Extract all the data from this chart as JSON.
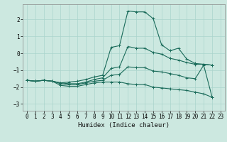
{
  "xlabel": "Humidex (Indice chaleur)",
  "xlim": [
    -0.5,
    23.5
  ],
  "ylim": [
    -3.4,
    2.9
  ],
  "bg_color": "#cce8e0",
  "grid_color": "#aad4cc",
  "line_color": "#1a6b5a",
  "xticks": [
    0,
    1,
    2,
    3,
    4,
    5,
    6,
    7,
    8,
    9,
    10,
    11,
    12,
    13,
    14,
    15,
    16,
    17,
    18,
    19,
    20,
    21,
    22,
    23
  ],
  "yticks": [
    -3,
    -2,
    -1,
    0,
    1,
    2
  ],
  "series": [
    {
      "x": [
        0,
        1,
        2,
        3,
        4,
        5,
        6,
        7,
        8,
        9,
        10,
        11,
        12,
        13,
        14,
        15,
        16,
        17,
        18,
        19,
        20,
        21,
        22
      ],
      "y": [
        -1.6,
        -1.65,
        -1.6,
        -1.65,
        -1.75,
        -1.7,
        -1.65,
        -1.55,
        -1.4,
        -1.3,
        0.35,
        0.45,
        2.5,
        2.45,
        2.45,
        2.05,
        0.5,
        0.15,
        0.3,
        -0.35,
        -0.6,
        -0.65,
        -0.7
      ]
    },
    {
      "x": [
        0,
        1,
        2,
        3,
        4,
        5,
        6,
        7,
        8,
        9,
        10,
        11,
        12,
        13,
        14,
        15,
        16,
        17,
        18,
        19,
        20,
        21,
        22
      ],
      "y": [
        -1.6,
        -1.65,
        -1.6,
        -1.65,
        -1.75,
        -1.8,
        -1.8,
        -1.7,
        -1.55,
        -1.45,
        -0.9,
        -0.8,
        0.4,
        0.3,
        0.3,
        0.05,
        -0.05,
        -0.3,
        -0.4,
        -0.55,
        -0.65,
        -0.65,
        -0.7
      ]
    },
    {
      "x": [
        0,
        1,
        2,
        3,
        4,
        5,
        6,
        7,
        8,
        9,
        10,
        11,
        12,
        13,
        14,
        15,
        16,
        17,
        18,
        19,
        20,
        21,
        22
      ],
      "y": [
        -1.6,
        -1.65,
        -1.6,
        -1.65,
        -1.8,
        -1.85,
        -1.85,
        -1.75,
        -1.65,
        -1.6,
        -1.3,
        -1.25,
        -0.8,
        -0.85,
        -0.85,
        -1.05,
        -1.1,
        -1.2,
        -1.3,
        -1.45,
        -1.5,
        -0.7,
        -2.6
      ]
    },
    {
      "x": [
        0,
        1,
        2,
        3,
        4,
        5,
        6,
        7,
        8,
        9,
        10,
        11,
        12,
        13,
        14,
        15,
        16,
        17,
        18,
        19,
        20,
        21,
        22
      ],
      "y": [
        -1.6,
        -1.65,
        -1.6,
        -1.65,
        -1.9,
        -1.95,
        -1.95,
        -1.85,
        -1.75,
        -1.7,
        -1.7,
        -1.7,
        -1.8,
        -1.85,
        -1.85,
        -2.0,
        -2.05,
        -2.1,
        -2.15,
        -2.2,
        -2.3,
        -2.4,
        -2.6
      ]
    }
  ]
}
